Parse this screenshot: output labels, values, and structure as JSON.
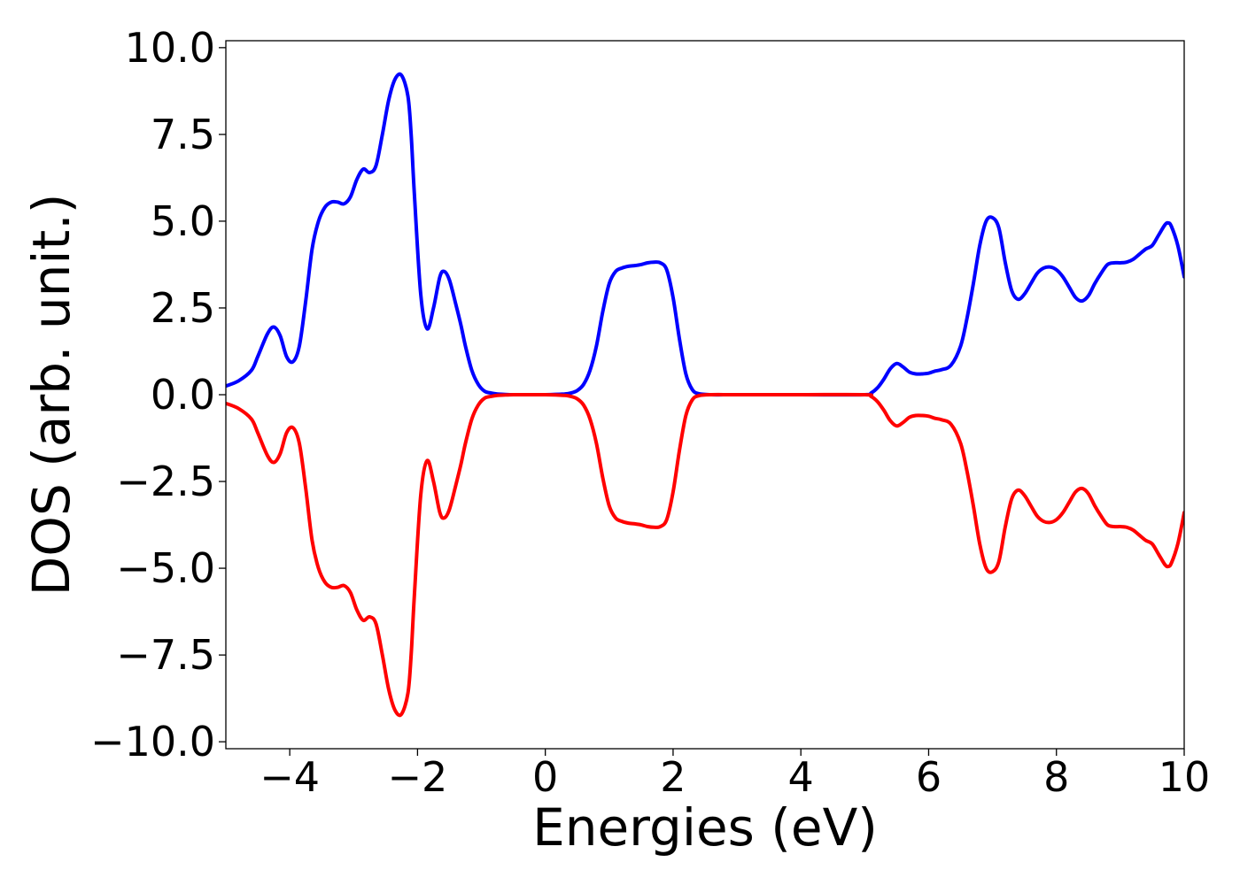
{
  "chart_data": {
    "type": "line",
    "title": "",
    "xlabel": "Energies (eV)",
    "ylabel": "DOS (arb. unit.)",
    "xlim": [
      -5,
      10
    ],
    "ylim": [
      -10.2,
      10.2
    ],
    "xticks": [
      -4,
      -2,
      0,
      2,
      4,
      6,
      8,
      10
    ],
    "xtick_labels": [
      "−4",
      "−2",
      "0",
      "2",
      "4",
      "6",
      "8",
      "10"
    ],
    "yticks": [
      10.0,
      7.5,
      5.0,
      2.5,
      0.0,
      -2.5,
      -5.0,
      -7.5,
      -10.0
    ],
    "ytick_labels": [
      "10.0",
      "7.5",
      "5.0",
      "2.5",
      "0.0",
      "−2.5",
      "−5.0",
      "−7.5",
      "−10.0"
    ],
    "grid": false,
    "legend": null,
    "series": [
      {
        "color": "#0000ff",
        "x": [
          -5.0,
          -4.8,
          -4.6,
          -4.5,
          -4.35,
          -4.25,
          -4.15,
          -4.05,
          -3.95,
          -3.85,
          -3.75,
          -3.65,
          -3.55,
          -3.45,
          -3.35,
          -3.25,
          -3.15,
          -3.05,
          -2.95,
          -2.85,
          -2.75,
          -2.65,
          -2.55,
          -2.45,
          -2.35,
          -2.25,
          -2.15,
          -2.1,
          -2.05,
          -1.95,
          -1.85,
          -1.75,
          -1.65,
          -1.58,
          -1.5,
          -1.4,
          -1.32,
          -1.25,
          -1.15,
          -1.05,
          -0.95,
          -0.85,
          -0.75,
          -0.65,
          -0.5,
          -0.3,
          0.0,
          0.3,
          0.4,
          0.5,
          0.6,
          0.7,
          0.8,
          0.9,
          1.0,
          1.1,
          1.2,
          1.3,
          1.4,
          1.5,
          1.6,
          1.7,
          1.8,
          1.9,
          2.0,
          2.1,
          2.2,
          2.3,
          2.4,
          2.6,
          3.0,
          4.0,
          5.0,
          5.1,
          5.2,
          5.3,
          5.4,
          5.5,
          5.6,
          5.7,
          5.8,
          5.9,
          6.0,
          6.1,
          6.2,
          6.35,
          6.5,
          6.6,
          6.7,
          6.8,
          6.9,
          7.0,
          7.1,
          7.2,
          7.3,
          7.4,
          7.5,
          7.6,
          7.7,
          7.8,
          7.9,
          8.0,
          8.1,
          8.2,
          8.3,
          8.4,
          8.5,
          8.6,
          8.7,
          8.8,
          8.9,
          9.0,
          9.1,
          9.2,
          9.3,
          9.4,
          9.5,
          9.6,
          9.7,
          9.75,
          9.8,
          9.9,
          10.0
        ],
        "y": [
          0.25,
          0.4,
          0.7,
          1.1,
          1.75,
          1.95,
          1.7,
          1.1,
          0.95,
          1.4,
          2.7,
          4.2,
          5.0,
          5.4,
          5.55,
          5.55,
          5.5,
          5.7,
          6.2,
          6.5,
          6.4,
          6.6,
          7.5,
          8.5,
          9.1,
          9.2,
          8.6,
          7.5,
          5.8,
          2.9,
          1.9,
          2.5,
          3.4,
          3.55,
          3.3,
          2.6,
          2.0,
          1.4,
          0.7,
          0.3,
          0.1,
          0.05,
          0.02,
          0.01,
          0.0,
          0.0,
          0.0,
          0.02,
          0.05,
          0.12,
          0.3,
          0.7,
          1.4,
          2.4,
          3.2,
          3.55,
          3.65,
          3.7,
          3.72,
          3.75,
          3.8,
          3.82,
          3.8,
          3.6,
          2.8,
          1.6,
          0.6,
          0.15,
          0.03,
          0.0,
          0.0,
          0.0,
          0.0,
          0.05,
          0.2,
          0.45,
          0.75,
          0.9,
          0.8,
          0.65,
          0.6,
          0.6,
          0.62,
          0.68,
          0.72,
          0.85,
          1.4,
          2.2,
          3.2,
          4.3,
          5.0,
          5.1,
          4.8,
          3.8,
          3.0,
          2.75,
          2.9,
          3.2,
          3.5,
          3.65,
          3.68,
          3.6,
          3.4,
          3.1,
          2.8,
          2.7,
          2.85,
          3.2,
          3.5,
          3.75,
          3.8,
          3.8,
          3.82,
          3.9,
          4.05,
          4.2,
          4.3,
          4.6,
          4.9,
          4.95,
          4.85,
          4.3,
          3.4
        ]
      },
      {
        "color": "#ff0000",
        "x": [
          -5.0,
          -4.8,
          -4.6,
          -4.5,
          -4.35,
          -4.25,
          -4.15,
          -4.05,
          -3.95,
          -3.85,
          -3.75,
          -3.65,
          -3.55,
          -3.45,
          -3.35,
          -3.25,
          -3.15,
          -3.05,
          -2.95,
          -2.85,
          -2.75,
          -2.65,
          -2.55,
          -2.45,
          -2.35,
          -2.25,
          -2.15,
          -2.1,
          -2.05,
          -1.95,
          -1.85,
          -1.75,
          -1.65,
          -1.58,
          -1.5,
          -1.4,
          -1.32,
          -1.25,
          -1.15,
          -1.05,
          -0.95,
          -0.85,
          -0.75,
          -0.65,
          -0.5,
          -0.3,
          0.0,
          0.3,
          0.4,
          0.5,
          0.6,
          0.7,
          0.8,
          0.9,
          1.0,
          1.1,
          1.2,
          1.3,
          1.4,
          1.5,
          1.6,
          1.7,
          1.8,
          1.9,
          2.0,
          2.1,
          2.2,
          2.3,
          2.4,
          2.6,
          3.0,
          4.0,
          5.0,
          5.1,
          5.2,
          5.3,
          5.4,
          5.5,
          5.6,
          5.7,
          5.8,
          5.9,
          6.0,
          6.1,
          6.2,
          6.35,
          6.5,
          6.6,
          6.7,
          6.8,
          6.9,
          7.0,
          7.1,
          7.2,
          7.3,
          7.4,
          7.5,
          7.6,
          7.7,
          7.8,
          7.9,
          8.0,
          8.1,
          8.2,
          8.3,
          8.4,
          8.5,
          8.6,
          8.7,
          8.8,
          8.9,
          9.0,
          9.1,
          9.2,
          9.3,
          9.4,
          9.5,
          9.6,
          9.7,
          9.75,
          9.8,
          9.9,
          10.0
        ],
        "y": [
          -0.25,
          -0.4,
          -0.7,
          -1.1,
          -1.75,
          -1.95,
          -1.7,
          -1.1,
          -0.95,
          -1.4,
          -2.7,
          -4.2,
          -5.0,
          -5.4,
          -5.55,
          -5.55,
          -5.5,
          -5.7,
          -6.2,
          -6.5,
          -6.4,
          -6.6,
          -7.5,
          -8.5,
          -9.1,
          -9.2,
          -8.6,
          -7.5,
          -5.8,
          -2.9,
          -1.9,
          -2.5,
          -3.4,
          -3.55,
          -3.3,
          -2.6,
          -2.0,
          -1.4,
          -0.7,
          -0.3,
          -0.1,
          -0.05,
          -0.02,
          -0.01,
          0.0,
          0.0,
          0.0,
          -0.02,
          -0.05,
          -0.12,
          -0.3,
          -0.7,
          -1.4,
          -2.4,
          -3.2,
          -3.55,
          -3.65,
          -3.7,
          -3.72,
          -3.75,
          -3.8,
          -3.82,
          -3.8,
          -3.6,
          -2.8,
          -1.6,
          -0.6,
          -0.15,
          -0.03,
          0.0,
          0.0,
          0.0,
          0.0,
          -0.05,
          -0.2,
          -0.45,
          -0.75,
          -0.9,
          -0.8,
          -0.65,
          -0.6,
          -0.6,
          -0.62,
          -0.68,
          -0.72,
          -0.85,
          -1.4,
          -2.2,
          -3.2,
          -4.3,
          -5.0,
          -5.1,
          -4.8,
          -3.8,
          -3.0,
          -2.75,
          -2.9,
          -3.2,
          -3.5,
          -3.65,
          -3.68,
          -3.6,
          -3.4,
          -3.1,
          -2.8,
          -2.7,
          -2.85,
          -3.2,
          -3.5,
          -3.75,
          -3.8,
          -3.8,
          -3.82,
          -3.9,
          -4.05,
          -4.2,
          -4.3,
          -4.6,
          -4.9,
          -4.95,
          -4.85,
          -4.3,
          -3.4
        ]
      }
    ]
  }
}
